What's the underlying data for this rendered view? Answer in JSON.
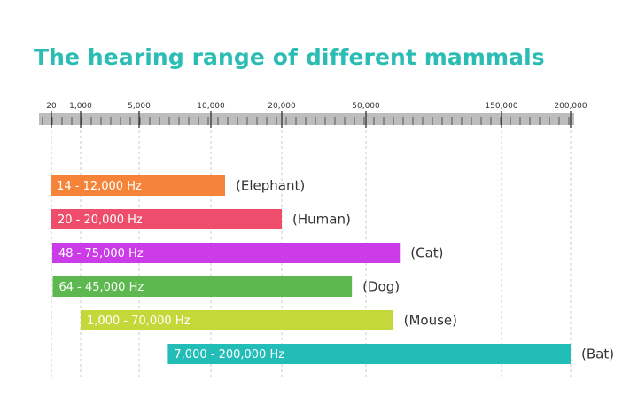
{
  "chart_data": {
    "type": "bar",
    "orientation": "horizontal-range",
    "title": "The hearing range of different mammals",
    "xlabel": "",
    "ylabel": "",
    "unit": "Hz",
    "axis_position": "top",
    "grid": "vertical-dashed",
    "xticks": [
      {
        "value": 20,
        "label": "20"
      },
      {
        "value": 1000,
        "label": "1,000"
      },
      {
        "value": 5000,
        "label": "5,000"
      },
      {
        "value": 10000,
        "label": "10,000"
      },
      {
        "value": 20000,
        "label": "20,000"
      },
      {
        "value": 50000,
        "label": "50,000"
      },
      {
        "value": 150000,
        "label": "150,000"
      },
      {
        "value": 200000,
        "label": "200,000"
      }
    ],
    "series": [
      {
        "name": "Elephant",
        "animal_label": "(Elephant)",
        "low": 14,
        "high": 12000,
        "range_label": "14 - 12,000 Hz",
        "color": "#f5843a"
      },
      {
        "name": "Human",
        "animal_label": "(Human)",
        "low": 20,
        "high": 20000,
        "range_label": "20 - 20,000 Hz",
        "color": "#ef4d6c"
      },
      {
        "name": "Cat",
        "animal_label": "(Cat)",
        "low": 48,
        "high": 75000,
        "range_label": "48 - 75,000 Hz",
        "color": "#cc3be8"
      },
      {
        "name": "Dog",
        "animal_label": "(Dog)",
        "low": 64,
        "high": 45000,
        "range_label": "64 - 45,000 Hz",
        "color": "#5cb84f"
      },
      {
        "name": "Mouse",
        "animal_label": "(Mouse)",
        "low": 1000,
        "high": 70000,
        "range_label": "1,000 - 70,000 Hz",
        "color": "#c5d83a"
      },
      {
        "name": "Bat",
        "animal_label": "(Bat)",
        "low": 7000,
        "high": 200000,
        "range_label": "7,000 - 200,000 Hz",
        "color": "#22bdb7"
      }
    ],
    "colors": {
      "title": "#2bbdb4",
      "axis": "#bdbdbd",
      "grid": "#c8c8c8"
    }
  }
}
